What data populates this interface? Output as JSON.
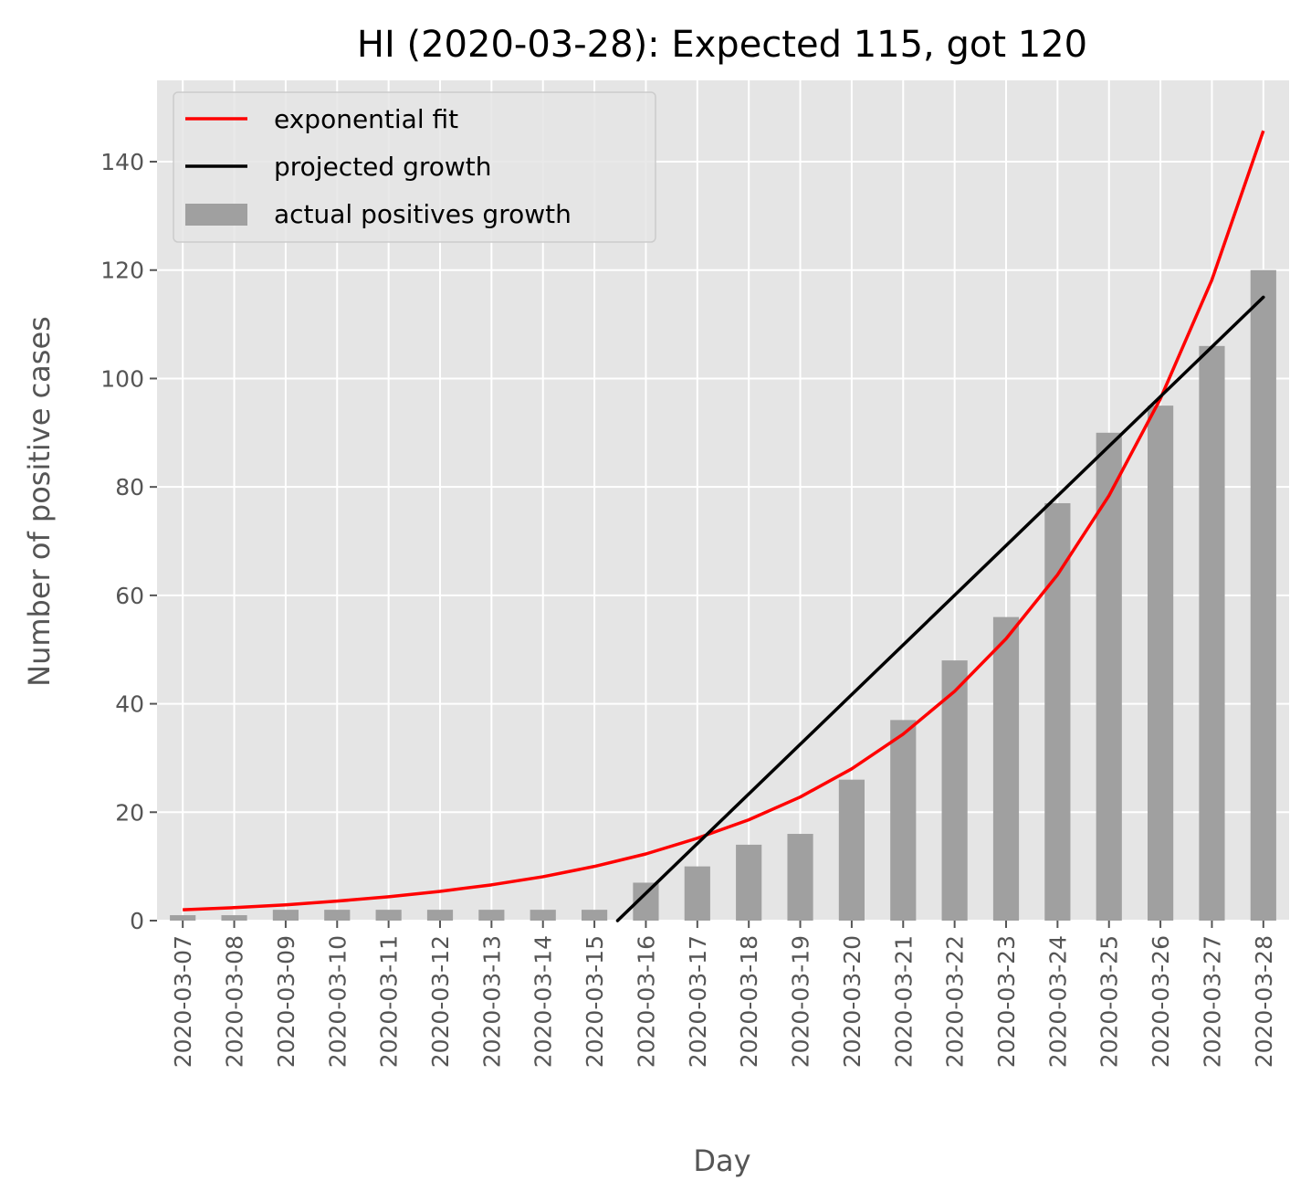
{
  "chart_data": {
    "type": "bar",
    "title": "HI (2020-03-28): Expected 115, got 120",
    "xlabel": "Day",
    "ylabel": "Number of positive cases",
    "categories": [
      "2020-03-07",
      "2020-03-08",
      "2020-03-09",
      "2020-03-10",
      "2020-03-11",
      "2020-03-12",
      "2020-03-13",
      "2020-03-14",
      "2020-03-15",
      "2020-03-16",
      "2020-03-17",
      "2020-03-18",
      "2020-03-19",
      "2020-03-20",
      "2020-03-21",
      "2020-03-22",
      "2020-03-23",
      "2020-03-24",
      "2020-03-25",
      "2020-03-26",
      "2020-03-27",
      "2020-03-28"
    ],
    "ylim": [
      0,
      155
    ],
    "yticks": [
      0,
      20,
      40,
      60,
      80,
      100,
      120,
      140
    ],
    "grid": true,
    "legend_position": "upper-left",
    "series": [
      {
        "name": "exponential fit",
        "type": "line",
        "color": "#ff0000",
        "values": [
          2.0,
          2.4,
          2.9,
          3.6,
          4.4,
          5.4,
          6.6,
          8.1,
          10.0,
          12.3,
          15.2,
          18.6,
          22.8,
          28.0,
          34.4,
          42.3,
          52.0,
          63.8,
          78.4,
          96.3,
          118.2,
          145.7
        ]
      },
      {
        "name": "projected growth",
        "type": "line",
        "color": "#000000",
        "x_start": 8.45,
        "x_end": 21,
        "y_start": 0,
        "y_end": 115
      },
      {
        "name": "actual positives growth",
        "type": "bar",
        "color": "#a0a0a0",
        "values": [
          1,
          1,
          2,
          2,
          2,
          2,
          2,
          2,
          2,
          7,
          10,
          14,
          16,
          26,
          37,
          48,
          56,
          77,
          90,
          95,
          106,
          120
        ]
      }
    ],
    "colors": {
      "plot_background": "#e5e5e5",
      "grid": "#ffffff",
      "tick_text": "#555555"
    }
  }
}
